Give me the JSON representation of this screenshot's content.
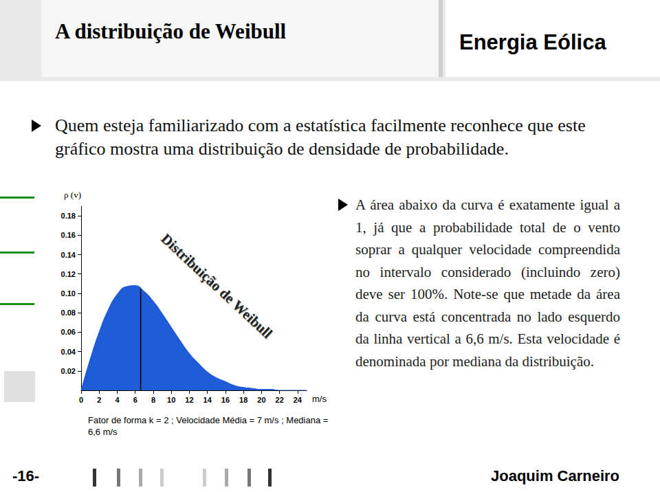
{
  "header": {
    "title": "A distribuição de Weibull",
    "section": "Energia Eólica"
  },
  "intro": "Quem esteja familiarizado com a estatística facilmente reconhece que este gráfico mostra uma distribuição de densidade de probabilidade.",
  "note": "A área abaixo da curva é exatamente igual a 1, já que a probabilidade total de o vento soprar a qualquer velocidade compreendida no intervalo considerado (incluindo zero) deve ser 100%. Note-se que metade da área da curva está concentrada no lado esquerdo da linha vertical a 6,6 m/s. Esta velocidade é denominada por mediana da distribuição.",
  "footer": {
    "page": "-16-",
    "author": "Joaquim Carneiro"
  },
  "chart_data": {
    "type": "area",
    "title": "Distribuição de Weibull",
    "caption": "Fator de forma k = 2 ; Velocidade Média = 7 m/s ; Mediana = 6,6 m/s",
    "x_label": "m/s",
    "y_label": "ρ (v)",
    "x": [
      0,
      1,
      2,
      3,
      4,
      5,
      6,
      7,
      8,
      9,
      10,
      11,
      12,
      13,
      14,
      15,
      16,
      17,
      18,
      19,
      20,
      21,
      22,
      23,
      24,
      25
    ],
    "values": [
      0,
      0.032,
      0.06,
      0.083,
      0.099,
      0.107,
      0.108,
      0.102,
      0.092,
      0.079,
      0.065,
      0.051,
      0.038,
      0.028,
      0.019,
      0.013,
      0.009,
      0.005,
      0.003,
      0.002,
      0.001,
      0.001,
      0,
      0,
      0,
      0
    ],
    "median_line": {
      "x": 6.6,
      "y": 0.105
    },
    "color": "#1f5bd6",
    "xlim": [
      0,
      25
    ],
    "xticks": [
      0,
      2,
      4,
      6,
      8,
      10,
      12,
      14,
      16,
      18,
      20,
      22,
      24
    ],
    "ylim": [
      0,
      0.19
    ],
    "yticks": [
      0.02,
      0.04,
      0.06,
      0.08,
      {
        "value": 0.1,
        "label": "0.10"
      },
      0.12,
      0.14,
      0.16,
      0.18
    ],
    "grid": false
  }
}
